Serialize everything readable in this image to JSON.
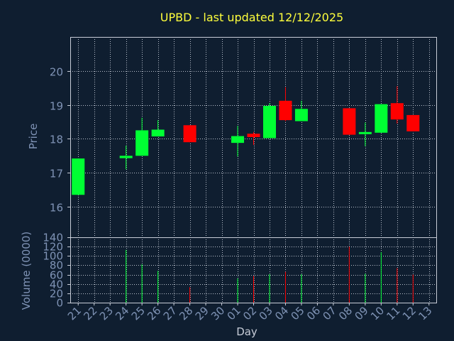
{
  "chart_data": {
    "type": "candlestick",
    "title": "UPBD - last updated 12/12/2025",
    "xlabel": "Day",
    "ylabel_price": "Price",
    "ylabel_volume": "Volume (0000)",
    "price_ylim": [
      15.1,
      21.0
    ],
    "price_yticks": [
      16,
      17,
      18,
      19,
      20
    ],
    "volume_ylim": [
      0,
      140
    ],
    "volume_yticks": [
      0,
      20,
      40,
      60,
      80,
      100,
      120,
      140
    ],
    "x_tick_labels": [
      "21",
      "22",
      "23",
      "24",
      "25",
      "26",
      "27",
      "28",
      "29",
      "30",
      "01",
      "02",
      "03",
      "04",
      "05",
      "06",
      "07",
      "08",
      "09",
      "10",
      "11",
      "12",
      "13"
    ],
    "grid": true,
    "candles": [
      {
        "day_index": 0,
        "open": 16.35,
        "high": 17.42,
        "low": 16.35,
        "close": 17.42,
        "volume": 0
      },
      {
        "day_index": 3,
        "open": 17.43,
        "high": 17.8,
        "low": 17.1,
        "close": 17.5,
        "volume": 113
      },
      {
        "day_index": 4,
        "open": 17.5,
        "high": 18.62,
        "low": 17.5,
        "close": 18.25,
        "volume": 82
      },
      {
        "day_index": 5,
        "open": 18.07,
        "high": 18.55,
        "low": 18.07,
        "close": 18.27,
        "volume": 68
      },
      {
        "day_index": 7,
        "open": 18.4,
        "high": 18.4,
        "low": 17.9,
        "close": 17.9,
        "volume": 33
      },
      {
        "day_index": 10,
        "open": 17.88,
        "high": 18.38,
        "low": 17.48,
        "close": 18.08,
        "volume": 52
      },
      {
        "day_index": 11,
        "open": 18.15,
        "high": 18.2,
        "low": 17.82,
        "close": 18.05,
        "volume": 57
      },
      {
        "day_index": 12,
        "open": 18.02,
        "high": 19.05,
        "low": 18.02,
        "close": 18.97,
        "volume": 61
      },
      {
        "day_index": 13,
        "open": 19.12,
        "high": 19.52,
        "low": 18.52,
        "close": 18.55,
        "volume": 66
      },
      {
        "day_index": 14,
        "open": 18.52,
        "high": 19.12,
        "low": 18.52,
        "close": 18.88,
        "volume": 61
      },
      {
        "day_index": 17,
        "open": 18.9,
        "high": 18.9,
        "low": 18.12,
        "close": 18.12,
        "volume": 120
      },
      {
        "day_index": 18,
        "open": 18.15,
        "high": 18.48,
        "low": 17.78,
        "close": 18.2,
        "volume": 62
      },
      {
        "day_index": 19,
        "open": 18.18,
        "high": 19.02,
        "low": 18.18,
        "close": 19.02,
        "volume": 108
      },
      {
        "day_index": 20,
        "open": 19.05,
        "high": 19.55,
        "low": 18.45,
        "close": 18.57,
        "volume": 74
      },
      {
        "day_index": 21,
        "open": 18.7,
        "high": 18.7,
        "low": 18.22,
        "close": 18.22,
        "volume": 60
      }
    ]
  },
  "colors": {
    "background": "#0f1e30",
    "axis": "#c8cdd8",
    "grid": "#b9c0cc",
    "title": "#ffff3c",
    "label": "#7f93b5",
    "up": "#00ff33",
    "down": "#ff0000"
  }
}
